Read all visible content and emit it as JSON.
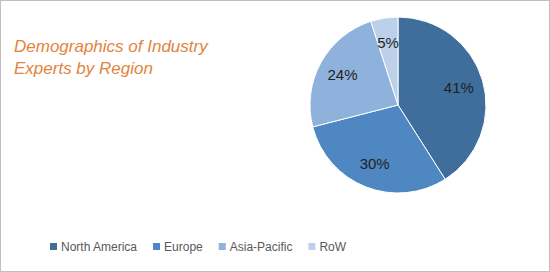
{
  "chart_data": {
    "type": "pie",
    "title": "Demographics of Industry Experts by Region",
    "categories": [
      "North America",
      "Europe",
      "Asia-Pacific",
      "RoW"
    ],
    "values": [
      41,
      30,
      24,
      5
    ],
    "value_labels": [
      "41%",
      "30%",
      "24%",
      "5%"
    ],
    "colors": [
      "#3f6e9c",
      "#4f87c2",
      "#8fb2dc",
      "#bcd0ea"
    ],
    "data_labels": true,
    "legend": "bottom"
  }
}
